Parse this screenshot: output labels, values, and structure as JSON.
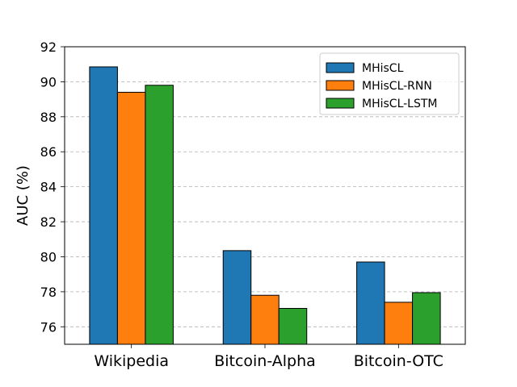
{
  "chart_data": {
    "type": "bar",
    "title": "",
    "xlabel": "",
    "ylabel": "AUC (%)",
    "categories": [
      "Wikipedia",
      "Bitcoin-Alpha",
      "Bitcoin-OTC"
    ],
    "series": [
      {
        "name": "MHisCL",
        "color": "#1f77b4",
        "values": [
          90.85,
          80.35,
          79.7
        ]
      },
      {
        "name": "MHisCL-RNN",
        "color": "#ff7f0e",
        "values": [
          89.4,
          77.8,
          77.4
        ]
      },
      {
        "name": "MHisCL-LSTM",
        "color": "#2ca02c",
        "values": [
          89.8,
          77.05,
          77.95
        ]
      }
    ],
    "ylim": [
      75,
      92
    ],
    "yticks": [
      76,
      78,
      80,
      82,
      84,
      86,
      88,
      90,
      92
    ],
    "grid": "y-dashed",
    "legend_position": "top-right"
  }
}
